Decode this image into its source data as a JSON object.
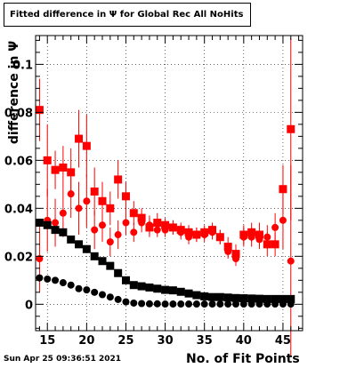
{
  "title": "Fitted difference in Ψ  for Global Rec All NoHits",
  "timestamp": "Sun Apr 25 09:36:51 2021",
  "chart_data": {
    "type": "scatter",
    "title": "Fitted difference in Ψ  for Global Rec All NoHits",
    "xlabel": "No. of Fit Points",
    "ylabel": "difference in Ψ",
    "xlim": [
      13.5,
      47.5
    ],
    "ylim": [
      -0.011,
      0.112
    ],
    "x_ticks": [
      15,
      20,
      25,
      30,
      35,
      40,
      45
    ],
    "y_ticks": [
      0,
      0.02,
      0.04,
      0.06,
      0.08,
      0.1
    ],
    "y_tick_labels": [
      "0",
      "0.02",
      "0.04",
      "0.06",
      "0.08",
      "0.1"
    ],
    "grid": true,
    "series": [
      {
        "marker": "square",
        "color": "#ff0000",
        "x": [
          14,
          15,
          16,
          17,
          18,
          19,
          20,
          21,
          22,
          23,
          24,
          25,
          26,
          27,
          28,
          29,
          30,
          31,
          32,
          33,
          34,
          35,
          36,
          37,
          38,
          39,
          40,
          41,
          42,
          43,
          44,
          45,
          46
        ],
        "y": [
          0.081,
          0.06,
          0.056,
          0.057,
          0.055,
          0.069,
          0.066,
          0.047,
          0.043,
          0.04,
          0.052,
          0.045,
          0.038,
          0.036,
          0.032,
          0.034,
          0.033,
          0.032,
          0.031,
          0.03,
          0.029,
          0.03,
          0.031,
          0.028,
          0.024,
          0.021,
          0.029,
          0.03,
          0.029,
          0.025,
          0.025,
          0.048,
          0.073
        ],
        "err": [
          0.013,
          0.015,
          0.008,
          0.009,
          0.01,
          0.012,
          0.013,
          0.01,
          0.008,
          0.007,
          0.008,
          0.006,
          0.005,
          0.004,
          0.004,
          0.004,
          0.003,
          0.003,
          0.003,
          0.003,
          0.003,
          0.003,
          0.003,
          0.003,
          0.004,
          0.004,
          0.004,
          0.004,
          0.005,
          0.005,
          0.005,
          0.01,
          0.038
        ]
      },
      {
        "marker": "circle",
        "color": "#ff0000",
        "x": [
          14,
          15,
          16,
          17,
          18,
          19,
          20,
          21,
          22,
          23,
          24,
          25,
          26,
          27,
          28,
          29,
          30,
          31,
          32,
          33,
          34,
          35,
          36,
          37,
          38,
          39,
          40,
          41,
          42,
          43,
          44,
          45,
          46
        ],
        "y": [
          0.019,
          0.035,
          0.034,
          0.038,
          0.046,
          0.04,
          0.043,
          0.031,
          0.033,
          0.026,
          0.029,
          0.034,
          0.03,
          0.034,
          0.033,
          0.031,
          0.031,
          0.032,
          0.03,
          0.028,
          0.029,
          0.029,
          0.03,
          0.028,
          0.022,
          0.019,
          0.028,
          0.028,
          0.027,
          0.028,
          0.032,
          0.035,
          0.018
        ],
        "err": [
          0.014,
          0.013,
          0.01,
          0.01,
          0.01,
          0.011,
          0.011,
          0.008,
          0.007,
          0.006,
          0.006,
          0.005,
          0.004,
          0.004,
          0.004,
          0.003,
          0.003,
          0.003,
          0.003,
          0.003,
          0.003,
          0.003,
          0.003,
          0.003,
          0.003,
          0.003,
          0.004,
          0.004,
          0.004,
          0.005,
          0.006,
          0.012,
          0.04
        ]
      },
      {
        "marker": "square",
        "color": "#000000",
        "x": [
          14,
          15,
          16,
          17,
          18,
          19,
          20,
          21,
          22,
          23,
          24,
          25,
          26,
          27,
          28,
          29,
          30,
          31,
          32,
          33,
          34,
          35,
          36,
          37,
          38,
          39,
          40,
          41,
          42,
          43,
          44,
          45,
          46
        ],
        "y": [
          0.034,
          0.033,
          0.031,
          0.03,
          0.027,
          0.025,
          0.023,
          0.02,
          0.018,
          0.016,
          0.013,
          0.01,
          0.008,
          0.0075,
          0.007,
          0.0065,
          0.006,
          0.0058,
          0.0052,
          0.0045,
          0.0038,
          0.0033,
          0.003,
          0.003,
          0.0028,
          0.0026,
          0.0025,
          0.0024,
          0.0023,
          0.0022,
          0.0022,
          0.0022,
          0.0022
        ]
      },
      {
        "marker": "circle",
        "color": "#000000",
        "x": [
          14,
          15,
          16,
          17,
          18,
          19,
          20,
          21,
          22,
          23,
          24,
          25,
          26,
          27,
          28,
          29,
          30,
          31,
          32,
          33,
          34,
          35,
          36,
          37,
          38,
          39,
          40,
          41,
          42,
          43,
          44,
          45,
          46
        ],
        "y": [
          0.011,
          0.0105,
          0.01,
          0.009,
          0.008,
          0.0065,
          0.006,
          0.005,
          0.004,
          0.003,
          0.002,
          0.001,
          0.0005,
          0.0003,
          0.0002,
          0.0002,
          0.0001,
          0.0001,
          0.0001,
          0.0001,
          0.0001,
          0.0001,
          0.0001,
          0.0001,
          0.0001,
          0.0001,
          0.0001,
          0.0001,
          0.0001,
          0.0001,
          0.0001,
          0.0001,
          0.0001
        ]
      }
    ]
  }
}
